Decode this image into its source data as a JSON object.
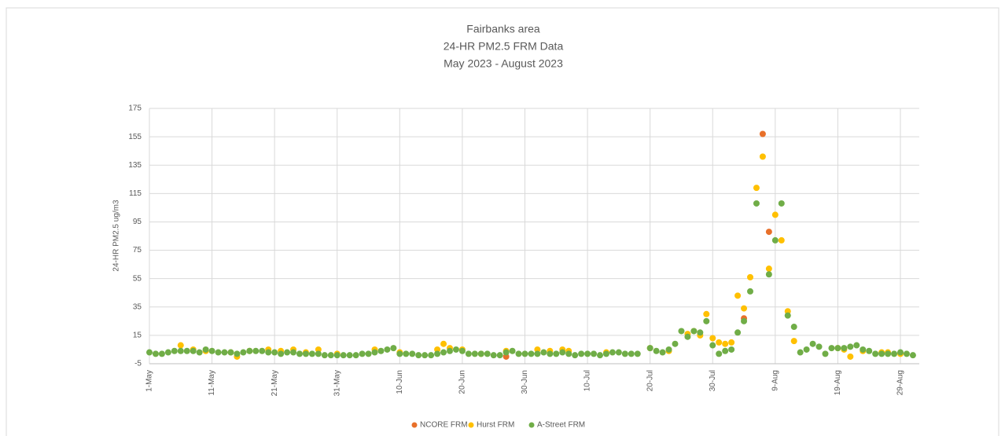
{
  "chart_data": {
    "type": "scatter",
    "title": "Fairbanks area",
    "subtitle": [
      "24-HR PM2.5 FRM Data",
      "May 2023 - August 2023"
    ],
    "y_label": "24-HR PM2.5 ug/m3",
    "categories": [
      "1-May",
      null,
      null,
      null,
      null,
      null,
      null,
      null,
      null,
      null,
      "11-May",
      null,
      null,
      null,
      null,
      null,
      null,
      null,
      null,
      null,
      "21-May",
      null,
      null,
      null,
      null,
      null,
      null,
      null,
      null,
      null,
      "31-May",
      null,
      null,
      null,
      null,
      null,
      null,
      null,
      null,
      null,
      "10-Jun",
      null,
      null,
      null,
      null,
      null,
      null,
      null,
      null,
      null,
      "20-Jun",
      null,
      null,
      null,
      null,
      null,
      null,
      null,
      null,
      null,
      "30-Jun",
      null,
      null,
      null,
      null,
      null,
      null,
      null,
      null,
      null,
      "10-Jul",
      null,
      null,
      null,
      null,
      null,
      null,
      null,
      null,
      null,
      "20-Jul",
      null,
      null,
      null,
      null,
      null,
      null,
      null,
      null,
      null,
      "30-Jul",
      null,
      null,
      null,
      null,
      null,
      null,
      null,
      null,
      null,
      "9-Aug",
      null,
      null,
      null,
      null,
      null,
      null,
      null,
      null,
      null,
      "19-Aug",
      null,
      null,
      null,
      null,
      null,
      null,
      null,
      null,
      null,
      "29-Aug",
      null,
      null
    ],
    "ylim": [
      -5,
      175
    ],
    "yticks": [
      -5,
      15,
      35,
      55,
      75,
      95,
      115,
      135,
      155,
      175
    ],
    "grid": true,
    "legend": "bottom",
    "series": [
      {
        "name": "NCORE FRM",
        "color": "#e8702a",
        "values": [
          null,
          null,
          null,
          null,
          null,
          null,
          null,
          null,
          null,
          null,
          null,
          null,
          null,
          null,
          null,
          null,
          null,
          null,
          null,
          null,
          null,
          null,
          null,
          null,
          null,
          null,
          null,
          null,
          null,
          null,
          null,
          null,
          null,
          null,
          null,
          null,
          null,
          null,
          null,
          null,
          null,
          null,
          null,
          null,
          null,
          null,
          null,
          null,
          null,
          null,
          null,
          null,
          null,
          null,
          null,
          null,
          null,
          0,
          null,
          null,
          null,
          null,
          null,
          null,
          null,
          null,
          null,
          null,
          null,
          null,
          null,
          null,
          null,
          null,
          null,
          null,
          null,
          null,
          null,
          null,
          null,
          null,
          null,
          null,
          null,
          null,
          null,
          null,
          null,
          null,
          null,
          null,
          null,
          null,
          null,
          27,
          null,
          null,
          157,
          88,
          null,
          null,
          null,
          null,
          null,
          null,
          null,
          null,
          null,
          null,
          null,
          null,
          null,
          null,
          null,
          null,
          null,
          null,
          null,
          null,
          null,
          null,
          null
        ]
      },
      {
        "name": "Hurst FRM",
        "color": "#ffc000",
        "values": [
          null,
          null,
          null,
          null,
          null,
          8,
          null,
          5,
          null,
          4,
          null,
          null,
          null,
          3,
          0,
          null,
          4,
          null,
          null,
          5,
          null,
          4,
          null,
          5,
          null,
          3,
          null,
          5,
          null,
          null,
          2,
          null,
          null,
          null,
          null,
          null,
          5,
          null,
          null,
          null,
          3,
          null,
          null,
          null,
          null,
          null,
          5,
          9,
          6,
          null,
          5,
          null,
          null,
          2,
          null,
          null,
          null,
          4,
          null,
          null,
          null,
          null,
          5,
          null,
          4,
          null,
          5,
          4,
          null,
          null,
          null,
          null,
          null,
          3,
          null,
          null,
          null,
          null,
          null,
          null,
          6,
          null,
          null,
          4,
          null,
          null,
          16,
          18,
          15,
          30,
          13,
          10,
          9,
          10,
          43,
          34,
          56,
          119,
          141,
          62,
          100,
          82,
          32,
          11,
          null,
          null,
          null,
          null,
          null,
          null,
          6,
          5,
          0,
          null,
          4,
          null,
          null,
          3,
          3,
          null,
          2,
          null,
          null
        ]
      },
      {
        "name": "A-Street FRM",
        "color": "#70ad47",
        "values": [
          3,
          2,
          2,
          3,
          4,
          4,
          4,
          4,
          3,
          5,
          4,
          3,
          3,
          3,
          2,
          3,
          4,
          4,
          4,
          3,
          3,
          2,
          3,
          3,
          2,
          2,
          2,
          2,
          1,
          1,
          1,
          1,
          1,
          1,
          2,
          2,
          3,
          4,
          5,
          6,
          2,
          2,
          2,
          1,
          1,
          1,
          2,
          3,
          4,
          5,
          4,
          2,
          2,
          2,
          2,
          1,
          1,
          3,
          4,
          2,
          2,
          2,
          2,
          3,
          2,
          2,
          3,
          2,
          1,
          2,
          2,
          2,
          1,
          2,
          3,
          3,
          2,
          2,
          2,
          null,
          6,
          4,
          3,
          5,
          9,
          18,
          14,
          18,
          17,
          25,
          8,
          2,
          4,
          5,
          17,
          25,
          46,
          108,
          null,
          58,
          82,
          108,
          29,
          21,
          3,
          5,
          9,
          7,
          2,
          6,
          6,
          6,
          7,
          8,
          5,
          4,
          2,
          2,
          2,
          2,
          3,
          2,
          1
        ]
      }
    ]
  }
}
